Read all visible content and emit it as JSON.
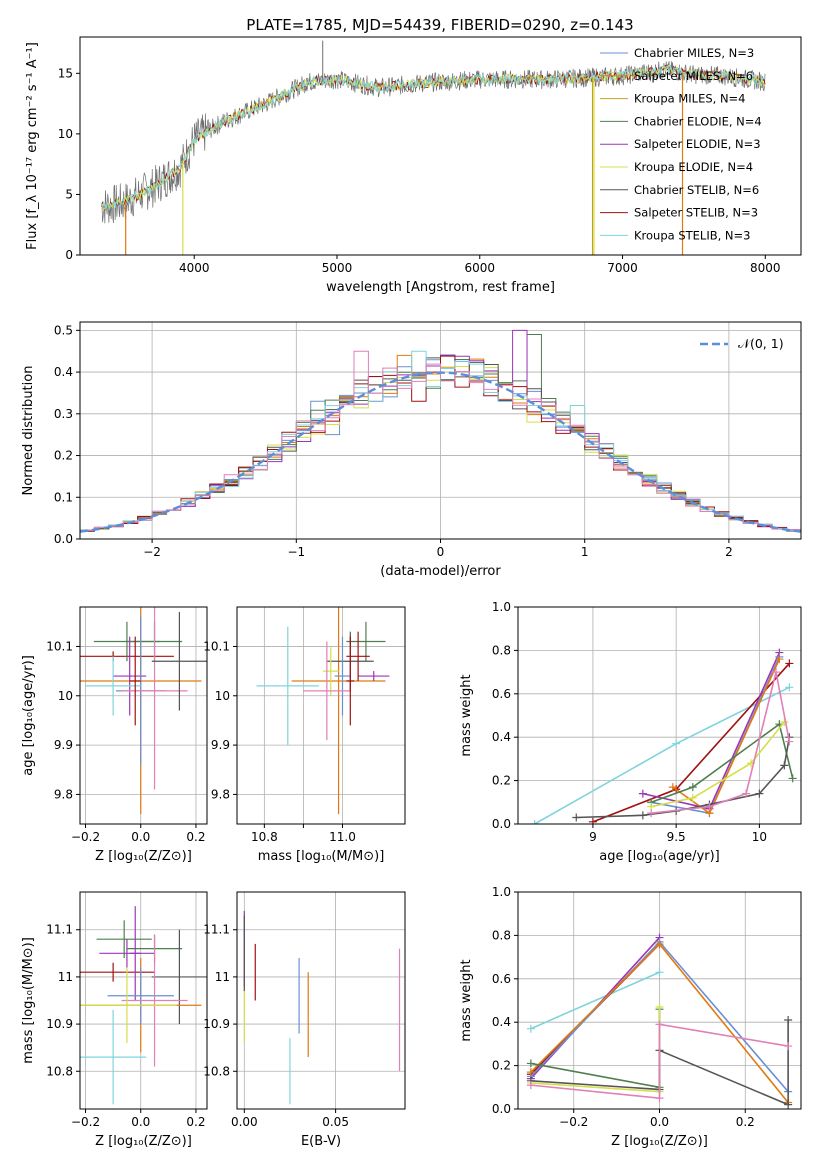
{
  "figure": {
    "title": "PLATE=1785, MJD=54439, FIBERID=0290, z=0.143"
  },
  "colors": {
    "ch_miles": "#6a8fd6",
    "sa_miles": "#e07a10",
    "kr_miles": "#c8a020",
    "ch_elodie": "#4f7f4f",
    "sa_elodie": "#9b36b8",
    "kr_elodie": "#d4e04a",
    "ch_stelib": "#555555",
    "sa_stelib": "#a01010",
    "kr_stelib": "#7fd4dc",
    "pink": "#e080b8",
    "normal": "#5b8fd9",
    "grid": "#b0b0b0"
  },
  "chart_data": [
    {
      "id": "spectrum",
      "type": "line",
      "title": "PLATE=1785, MJD=54439, FIBERID=0290, z=0.143",
      "xlabel": "wavelength [Angstrom, rest frame]",
      "ylabel": "Flux [f_λ 10⁻¹⁷ erg cm⁻² s⁻¹ A⁻¹]",
      "xlim": [
        3200,
        8250
      ],
      "ylim": [
        0,
        18
      ],
      "grid": false,
      "xticks": [
        4000,
        5000,
        6000,
        7000,
        8000
      ],
      "yticks": [
        0,
        5,
        10,
        15
      ],
      "legend": {
        "placement": "top-right",
        "entries": [
          {
            "label": "Chabrier MILES, N_SSP=3",
            "color": "ch_miles"
          },
          {
            "label": "Salpeter MILES, N_SSP=6",
            "color": "sa_miles"
          },
          {
            "label": "Kroupa MILES, N_SSP=4",
            "color": "kr_miles"
          },
          {
            "label": "Chabrier ELODIE, N_SSP=4",
            "color": "ch_elodie"
          },
          {
            "label": "Salpeter ELODIE, N_SSP=3",
            "color": "sa_elodie"
          },
          {
            "label": "Kroupa ELODIE, N_SSP=4",
            "color": "kr_elodie"
          },
          {
            "label": "Chabrier STELIB, N_SSP=6",
            "color": "ch_stelib"
          },
          {
            "label": "Salpeter STELIB, N_SSP=3",
            "color": "sa_stelib"
          },
          {
            "label": "Kroupa STELIB, N_SSP=3",
            "color": "kr_stelib"
          }
        ]
      },
      "continuum": {
        "x": [
          3350,
          3500,
          3700,
          3900,
          4000,
          4200,
          4500,
          4800,
          5000,
          5300,
          5600,
          6000,
          6500,
          7000,
          7300,
          7500,
          7700,
          8000
        ],
        "y": [
          4.0,
          4.3,
          5.5,
          7.2,
          9.5,
          11.0,
          12.5,
          14.3,
          14.5,
          13.8,
          14.2,
          14.5,
          14.5,
          14.8,
          15.3,
          14.9,
          14.8,
          14.3
        ]
      },
      "drops": [
        {
          "x": 3920,
          "color": "kr_elodie"
        },
        {
          "x": 3520,
          "color": "sa_miles"
        },
        {
          "x": 6790,
          "color": "kr_miles"
        },
        {
          "x": 6800,
          "color": "kr_elodie"
        },
        {
          "x": 7420,
          "color": "sa_miles"
        }
      ],
      "spike": {
        "x": 4900,
        "y": 17.7
      }
    },
    {
      "id": "residuals",
      "type": "bar",
      "xlabel": "(data-model)/error",
      "ylabel": "Normed distribution",
      "xlim": [
        -2.5,
        2.5
      ],
      "ylim": [
        0,
        0.52
      ],
      "grid": true,
      "xticks": [
        -2,
        -1,
        0,
        1,
        2
      ],
      "xticklabels": [
        "−2",
        "−1",
        "0",
        "1",
        "2"
      ],
      "yticks": [
        0.0,
        0.1,
        0.2,
        0.3,
        0.4,
        0.5
      ],
      "legend": {
        "placement": "top-right",
        "entries": [
          {
            "label": "𝒩(0, 1)",
            "color": "normal"
          }
        ]
      },
      "bin_width": 0.1,
      "series": [
        {
          "color": "ch_miles",
          "peaks": {
            "-0.9": 0.33,
            "-0.8": 0.25
          }
        },
        {
          "color": "sa_miles",
          "peaks": {
            "-0.3": 0.44
          }
        },
        {
          "color": "ch_elodie",
          "peaks": {
            "0.1": 0.43,
            "0.6": 0.49
          }
        },
        {
          "color": "sa_elodie",
          "peaks": {
            "0.5": 0.5
          }
        },
        {
          "color": "kr_elodie",
          "peaks": {
            "0.6": 0.28
          }
        },
        {
          "color": "ch_stelib",
          "peaks": {
            "-0.8": 0.31
          }
        },
        {
          "color": "sa_stelib",
          "peaks": {
            "-0.2": 0.33
          }
        },
        {
          "color": "kr_stelib",
          "peaks": {
            "-0.2": 0.45,
            "0.9": 0.32
          }
        },
        {
          "color": "pink",
          "peaks": {
            "-0.6": 0.45
          }
        }
      ]
    },
    {
      "id": "z_age",
      "type": "scatter",
      "xlabel": "Z [log₁₀(Z/Z⊙)]",
      "ylabel": "age  [log₁₀(age/yr)]",
      "xlim": [
        -0.22,
        0.24
      ],
      "ylim": [
        9.74,
        10.18
      ],
      "grid": true,
      "xticks": [
        -0.2,
        0.0,
        0.2
      ],
      "xticklabels": [
        "−0.2",
        "0.0",
        "0.2"
      ],
      "yticks": [
        9.8,
        9.9,
        10.0,
        10.1
      ],
      "points": [
        {
          "x": -0.1,
          "xerr": 0.22,
          "y": 10.08,
          "yerr": 0.01,
          "color": "sa_stelib"
        },
        {
          "x": -0.05,
          "xerr": 0.12,
          "y": 10.11,
          "yerr": 0.04,
          "color": "ch_elodie"
        },
        {
          "x": 0.05,
          "xerr": 0.1,
          "y": 10.11,
          "yerr": 0.04,
          "color": "ch_elodie"
        },
        {
          "x": 0.0,
          "xerr": 0.22,
          "y": 10.03,
          "yerr": 0.27,
          "color": "sa_miles"
        },
        {
          "x": -0.04,
          "xerr": 0.06,
          "y": 10.04,
          "yerr": 0.08,
          "color": "sa_elodie"
        },
        {
          "x": 0.0,
          "xerr": 0.09,
          "y": 10.01,
          "yerr": 0.15,
          "color": "ch_miles"
        },
        {
          "x": 0.05,
          "xerr": 0.12,
          "y": 10.01,
          "yerr": 0.2,
          "color": "pink"
        },
        {
          "x": -0.1,
          "xerr": 0.1,
          "y": 10.02,
          "yerr": 0.06,
          "color": "kr_stelib"
        },
        {
          "x": 0.14,
          "xerr": 0.1,
          "y": 10.07,
          "yerr": 0.1,
          "color": "ch_stelib"
        },
        {
          "x": -0.02,
          "xerr": 0.02,
          "y": 10.03,
          "yerr": 0.09,
          "color": "sa_stelib"
        }
      ]
    },
    {
      "id": "mass_age",
      "type": "scatter",
      "xlabel": "mass [log₁₀(M/M⊙)]",
      "ylabel": "",
      "xlim": [
        10.73,
        11.16
      ],
      "ylim": [
        9.74,
        10.18
      ],
      "grid": true,
      "xticks": [
        10.8,
        10.9,
        11.0
      ],
      "xticklabels": [
        "10.8",
        "",
        "11.0"
      ],
      "yticks": [
        9.8,
        9.9,
        10.0,
        10.1
      ],
      "points": [
        {
          "x": 10.99,
          "xerr": 0.12,
          "y": 10.03,
          "yerr": 0.27,
          "color": "sa_miles"
        },
        {
          "x": 11.06,
          "xerr": 0.05,
          "y": 10.11,
          "yerr": 0.04,
          "color": "ch_elodie"
        },
        {
          "x": 11.08,
          "xerr": 0.04,
          "y": 10.04,
          "yerr": 0.01,
          "color": "sa_elodie"
        },
        {
          "x": 11.02,
          "xerr": 0.06,
          "y": 10.07,
          "yerr": 0.06,
          "color": "ch_stelib"
        },
        {
          "x": 11.04,
          "xerr": 0.03,
          "y": 10.08,
          "yerr": 0.05,
          "color": "sa_stelib"
        },
        {
          "x": 11.0,
          "xerr": 0.02,
          "y": 10.04,
          "yerr": 0.08,
          "color": "ch_miles"
        },
        {
          "x": 10.97,
          "xerr": 0.02,
          "y": 10.05,
          "yerr": 0.05,
          "color": "kr_elodie"
        },
        {
          "x": 10.96,
          "xerr": 0.06,
          "y": 10.01,
          "yerr": 0.1,
          "color": "pink"
        },
        {
          "x": 10.86,
          "xerr": 0.08,
          "y": 10.02,
          "yerr": 0.12,
          "color": "kr_stelib"
        },
        {
          "x": 11.02,
          "xerr": 0.01,
          "y": 10.03,
          "yerr": 0.09,
          "color": "sa_stelib"
        }
      ]
    },
    {
      "id": "age_weight",
      "type": "line",
      "xlabel": "age  [log₁₀(age/yr)]",
      "ylabel": "mass weight",
      "xlim": [
        8.55,
        10.25
      ],
      "ylim": [
        0,
        1.0
      ],
      "grid": true,
      "xticks": [
        9.0,
        9.5,
        10.0
      ],
      "yticks": [
        0.0,
        0.2,
        0.4,
        0.6,
        0.8,
        1.0
      ],
      "series": [
        {
          "color": "kr_stelib",
          "x": [
            8.65,
            9.5,
            10.18
          ],
          "y": [
            0.0,
            0.37,
            0.63
          ]
        },
        {
          "color": "sa_stelib",
          "x": [
            9.0,
            9.5,
            10.18
          ],
          "y": [
            0.01,
            0.16,
            0.74
          ]
        },
        {
          "color": "sa_elodie",
          "x": [
            9.3,
            9.7,
            10.12
          ],
          "y": [
            0.14,
            0.07,
            0.79
          ]
        },
        {
          "color": "ch_miles",
          "x": [
            9.35,
            9.7,
            10.12
          ],
          "y": [
            0.1,
            0.05,
            0.77
          ]
        },
        {
          "color": "sa_miles",
          "x": [
            9.48,
            9.7,
            10.12
          ],
          "y": [
            0.17,
            0.05,
            0.76
          ]
        },
        {
          "color": "ch_elodie",
          "x": [
            9.35,
            9.6,
            10.12,
            10.2
          ],
          "y": [
            0.1,
            0.17,
            0.46,
            0.21
          ]
        },
        {
          "color": "kr_elodie",
          "x": [
            9.35,
            9.6,
            9.95,
            10.15
          ],
          "y": [
            0.08,
            0.12,
            0.28,
            0.47
          ]
        },
        {
          "color": "ch_stelib",
          "x": [
            8.9,
            9.3,
            9.5,
            9.7,
            10.0,
            10.15,
            10.18
          ],
          "y": [
            0.03,
            0.04,
            0.06,
            0.09,
            0.14,
            0.27,
            0.4
          ]
        },
        {
          "color": "pink",
          "x": [
            9.35,
            9.7,
            9.92,
            10.1,
            10.18
          ],
          "y": [
            0.05,
            0.08,
            0.14,
            0.7,
            0.38
          ]
        }
      ]
    },
    {
      "id": "z_mass",
      "type": "scatter",
      "xlabel": "Z [log₁₀(Z/Z⊙)]",
      "ylabel": "mass [log₁₀(M/M⊙)]",
      "xlim": [
        -0.22,
        0.24
      ],
      "ylim": [
        10.72,
        11.18
      ],
      "grid": true,
      "xticks": [
        -0.2,
        0.0,
        0.2
      ],
      "xticklabels": [
        "−0.2",
        "0.0",
        "0.2"
      ],
      "yticks": [
        10.8,
        10.9,
        11.0,
        11.1
      ],
      "points": [
        {
          "x": -0.05,
          "xerr": 0.1,
          "y": 11.05,
          "yerr": 0.03,
          "color": "sa_elodie"
        },
        {
          "x": 0.05,
          "xerr": 0.1,
          "y": 11.06,
          "yerr": 0.03,
          "color": "ch_elodie"
        },
        {
          "x": -0.06,
          "xerr": 0.1,
          "y": 11.08,
          "yerr": 0.04,
          "color": "ch_elodie"
        },
        {
          "x": -0.1,
          "xerr": 0.15,
          "y": 11.01,
          "yerr": 0.02,
          "color": "sa_stelib"
        },
        {
          "x": 0.14,
          "xerr": 0.1,
          "y": 11.0,
          "yerr": 0.1,
          "color": "ch_stelib"
        },
        {
          "x": 0.0,
          "xerr": 0.22,
          "y": 10.94,
          "yerr": 0.1,
          "color": "sa_miles"
        },
        {
          "x": -0.02,
          "xerr": 0.02,
          "y": 11.05,
          "yerr": 0.1,
          "color": "sa_elodie"
        },
        {
          "x": 0.0,
          "xerr": 0.12,
          "y": 10.96,
          "yerr": 0.06,
          "color": "ch_miles"
        },
        {
          "x": 0.05,
          "xerr": 0.12,
          "y": 10.95,
          "yerr": 0.14,
          "color": "pink"
        },
        {
          "x": -0.05,
          "xerr": 0.18,
          "y": 10.94,
          "yerr": 0.08,
          "color": "kr_elodie"
        },
        {
          "x": -0.1,
          "xerr": 0.12,
          "y": 10.83,
          "yerr": 0.1,
          "color": "kr_stelib"
        }
      ]
    },
    {
      "id": "ebv_mass",
      "type": "scatter",
      "xlabel": "E(B-V)",
      "ylabel": "",
      "xlim": [
        -0.004,
        0.088
      ],
      "ylim": [
        10.72,
        11.18
      ],
      "grid": true,
      "xticks": [
        0.0,
        0.05
      ],
      "xticklabels": [
        "0.00",
        "0.05"
      ],
      "yticks": [
        10.8,
        10.9,
        11.0,
        11.1
      ],
      "points": [
        {
          "x": 0.0,
          "xerr": 0,
          "y": 11.06,
          "yerr": 0.08,
          "color": "sa_elodie"
        },
        {
          "x": 0.0,
          "xerr": 0,
          "y": 10.92,
          "yerr": 0.06,
          "color": "kr_elodie"
        },
        {
          "x": 0.0,
          "xerr": 0,
          "y": 11.05,
          "yerr": 0.08,
          "color": "ch_stelib"
        },
        {
          "x": 0.006,
          "xerr": 0,
          "y": 11.01,
          "yerr": 0.06,
          "color": "sa_stelib"
        },
        {
          "x": 0.025,
          "xerr": 0,
          "y": 10.8,
          "yerr": 0.07,
          "color": "kr_stelib"
        },
        {
          "x": 0.03,
          "xerr": 0,
          "y": 10.96,
          "yerr": 0.08,
          "color": "ch_miles"
        },
        {
          "x": 0.035,
          "xerr": 0,
          "y": 10.92,
          "yerr": 0.09,
          "color": "sa_miles"
        },
        {
          "x": 0.085,
          "xerr": 0,
          "y": 10.93,
          "yerr": 0.13,
          "color": "pink"
        }
      ]
    },
    {
      "id": "z_weight",
      "type": "line",
      "xlabel": "Z [log₁₀(Z/Z⊙)]",
      "ylabel": "mass weight",
      "xlim": [
        -0.33,
        0.33
      ],
      "ylim": [
        0,
        1.0
      ],
      "grid": true,
      "xticks": [
        -0.2,
        0.0,
        0.2
      ],
      "xticklabels": [
        "−0.2",
        "0.0",
        "0.2"
      ],
      "yticks": [
        0.0,
        0.2,
        0.4,
        0.6,
        0.8,
        1.0
      ],
      "series": [
        {
          "color": "kr_stelib",
          "x": [
            -0.3,
            0.0
          ],
          "y": [
            0.37,
            0.63
          ]
        },
        {
          "color": "sa_stelib",
          "x": [
            -0.3,
            0.0
          ],
          "y": [
            0.16,
            0.76
          ]
        },
        {
          "color": "sa_elodie",
          "x": [
            -0.3,
            0.0
          ],
          "y": [
            0.14,
            0.79
          ]
        },
        {
          "color": "ch_miles",
          "x": [
            -0.3,
            0.0,
            0.3
          ],
          "y": [
            0.15,
            0.77,
            0.08
          ]
        },
        {
          "color": "sa_miles",
          "x": [
            -0.3,
            0.0,
            0.3
          ],
          "y": [
            0.17,
            0.76,
            0.03
          ]
        },
        {
          "color": "ch_elodie",
          "x": [
            -0.3,
            0.0,
            0.0
          ],
          "y": [
            0.21,
            0.1,
            0.46
          ]
        },
        {
          "color": "kr_elodie",
          "x": [
            -0.3,
            0.0,
            0.0
          ],
          "y": [
            0.12,
            0.08,
            0.47
          ]
        },
        {
          "color": "ch_stelib",
          "x": [
            -0.3,
            0.0,
            0.0,
            0.3,
            0.3
          ],
          "y": [
            0.13,
            0.09,
            0.27,
            0.02,
            0.41
          ]
        },
        {
          "color": "pink",
          "x": [
            -0.3,
            0.0,
            0.0,
            0.3
          ],
          "y": [
            0.11,
            0.05,
            0.39,
            0.29
          ]
        }
      ]
    }
  ]
}
